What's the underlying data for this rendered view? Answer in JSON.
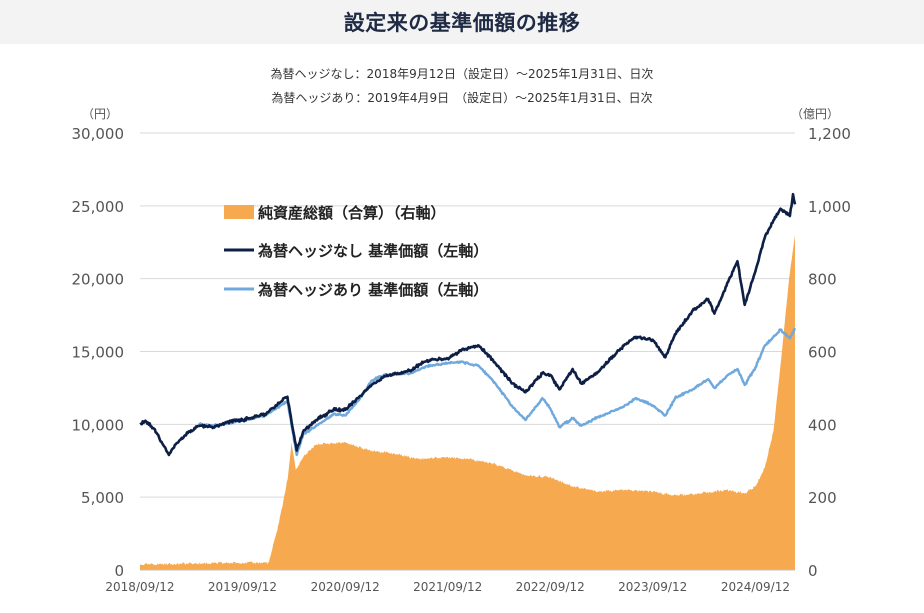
{
  "title": "設定来の基準価額の推移",
  "subtitle_lines": [
    "為替ヘッジなし：2018年9月12日（設定日）～2025年1月31日、日次",
    "為替ヘッジあり：2019年4月9日　（設定日）～2025年1月31日、日次"
  ],
  "colors": {
    "unhedged": "#0d1f45",
    "hedged": "#6fa8dc",
    "net_assets": "#f7a94f",
    "grid": "#d9d9d9"
  },
  "chart_data": {
    "type": "line",
    "x_ticks": [
      "2018/09/12",
      "2019/09/12",
      "2020/09/12",
      "2021/09/12",
      "2022/09/12",
      "2023/09/12",
      "2024/09/12"
    ],
    "y_left": {
      "unit": "（円）",
      "min": 0,
      "max": 30000,
      "ticks": [
        "0",
        "5,000",
        "10,000",
        "15,000",
        "20,000",
        "25,000",
        "30,000"
      ]
    },
    "y_right": {
      "unit": "（億円）",
      "min": 0,
      "max": 1200,
      "ticks": [
        "0",
        "200",
        "400",
        "600",
        "800",
        "1,000",
        "1,200"
      ]
    },
    "legend": [
      "純資産総額（合算）（右軸）",
      "為替ヘッジなし 基準価額（左軸）",
      "為替ヘッジあり 基準価額（左軸）"
    ],
    "legend_position": "upper-left",
    "grid": true,
    "series": [
      {
        "name": "純資産総額（合算）（右軸）",
        "kind": "area",
        "axis": "right",
        "points": [
          [
            "2018-09-12",
            15
          ],
          [
            "2019-04-01",
            18
          ],
          [
            "2019-09-12",
            20
          ],
          [
            "2019-12-15",
            20
          ],
          [
            "2020-01-20",
            130
          ],
          [
            "2020-02-20",
            250
          ],
          [
            "2020-03-05",
            350
          ],
          [
            "2020-03-20",
            275
          ],
          [
            "2020-04-15",
            310
          ],
          [
            "2020-06-01",
            345
          ],
          [
            "2020-09-12",
            350
          ],
          [
            "2020-12-01",
            330
          ],
          [
            "2021-03-01",
            320
          ],
          [
            "2021-06-01",
            305
          ],
          [
            "2021-09-12",
            310
          ],
          [
            "2021-12-01",
            305
          ],
          [
            "2022-03-01",
            290
          ],
          [
            "2022-06-15",
            260
          ],
          [
            "2022-09-12",
            255
          ],
          [
            "2022-12-01",
            230
          ],
          [
            "2023-03-01",
            215
          ],
          [
            "2023-06-01",
            220
          ],
          [
            "2023-09-12",
            215
          ],
          [
            "2023-12-01",
            205
          ],
          [
            "2024-03-01",
            210
          ],
          [
            "2024-06-01",
            220
          ],
          [
            "2024-08-05",
            210
          ],
          [
            "2024-09-12",
            230
          ],
          [
            "2024-10-15",
            280
          ],
          [
            "2024-11-15",
            380
          ],
          [
            "2024-12-10",
            560
          ],
          [
            "2025-01-10",
            800
          ],
          [
            "2025-01-31",
            920
          ]
        ]
      },
      {
        "name": "為替ヘッジなし 基準価額（左軸）",
        "kind": "line",
        "axis": "left",
        "points": [
          [
            "2018-09-12",
            10000
          ],
          [
            "2018-10-01",
            10250
          ],
          [
            "2018-11-01",
            9700
          ],
          [
            "2018-12-24",
            7900
          ],
          [
            "2019-01-20",
            8700
          ],
          [
            "2019-03-01",
            9400
          ],
          [
            "2019-04-09",
            9900
          ],
          [
            "2019-06-01",
            9800
          ],
          [
            "2019-08-01",
            10200
          ],
          [
            "2019-09-12",
            10300
          ],
          [
            "2019-12-01",
            10700
          ],
          [
            "2020-02-19",
            11900
          ],
          [
            "2020-03-23",
            8200
          ],
          [
            "2020-04-15",
            9500
          ],
          [
            "2020-06-01",
            10300
          ],
          [
            "2020-08-01",
            11000
          ],
          [
            "2020-09-12",
            11000
          ],
          [
            "2020-11-01",
            11900
          ],
          [
            "2020-12-15",
            12700
          ],
          [
            "2021-02-01",
            13300
          ],
          [
            "2021-05-01",
            13700
          ],
          [
            "2021-07-01",
            14400
          ],
          [
            "2021-09-12",
            14500
          ],
          [
            "2021-11-01",
            15100
          ],
          [
            "2022-01-01",
            15400
          ],
          [
            "2022-03-01",
            14200
          ],
          [
            "2022-05-01",
            12800
          ],
          [
            "2022-06-16",
            12200
          ],
          [
            "2022-08-15",
            13500
          ],
          [
            "2022-09-12",
            13400
          ],
          [
            "2022-10-15",
            12400
          ],
          [
            "2022-12-01",
            13800
          ],
          [
            "2023-01-01",
            12800
          ],
          [
            "2023-03-01",
            13600
          ],
          [
            "2023-06-01",
            15400
          ],
          [
            "2023-07-15",
            16000
          ],
          [
            "2023-09-12",
            15800
          ],
          [
            "2023-10-27",
            14600
          ],
          [
            "2023-12-01",
            16200
          ],
          [
            "2024-02-01",
            17800
          ],
          [
            "2024-03-28",
            18600
          ],
          [
            "2024-04-19",
            17600
          ],
          [
            "2024-06-01",
            19500
          ],
          [
            "2024-07-10",
            21200
          ],
          [
            "2024-08-05",
            18200
          ],
          [
            "2024-09-12",
            20500
          ],
          [
            "2024-10-15",
            22800
          ],
          [
            "2024-11-15",
            24000
          ],
          [
            "2024-12-10",
            24800
          ],
          [
            "2025-01-13",
            24300
          ],
          [
            "2025-01-24",
            25800
          ],
          [
            "2025-01-31",
            25100
          ]
        ]
      },
      {
        "name": "為替ヘッジあり 基準価額（左軸）",
        "kind": "line",
        "axis": "left",
        "points": [
          [
            "2019-04-09",
            10000
          ],
          [
            "2019-06-01",
            9900
          ],
          [
            "2019-08-01",
            10100
          ],
          [
            "2019-09-12",
            10250
          ],
          [
            "2019-12-01",
            10600
          ],
          [
            "2020-02-19",
            11600
          ],
          [
            "2020-03-23",
            7900
          ],
          [
            "2020-04-15",
            9300
          ],
          [
            "2020-06-01",
            9900
          ],
          [
            "2020-08-01",
            10700
          ],
          [
            "2020-09-12",
            10600
          ],
          [
            "2020-11-01",
            11700
          ],
          [
            "2020-12-15",
            13000
          ],
          [
            "2021-02-01",
            13400
          ],
          [
            "2021-05-01",
            13500
          ],
          [
            "2021-07-01",
            14000
          ],
          [
            "2021-09-12",
            14200
          ],
          [
            "2021-11-01",
            14300
          ],
          [
            "2022-01-01",
            14000
          ],
          [
            "2022-03-01",
            12800
          ],
          [
            "2022-05-01",
            11200
          ],
          [
            "2022-06-16",
            10300
          ],
          [
            "2022-08-15",
            11800
          ],
          [
            "2022-09-12",
            11100
          ],
          [
            "2022-10-15",
            9800
          ],
          [
            "2022-12-01",
            10400
          ],
          [
            "2023-01-01",
            9900
          ],
          [
            "2023-03-01",
            10500
          ],
          [
            "2023-06-01",
            11200
          ],
          [
            "2023-07-15",
            11800
          ],
          [
            "2023-09-12",
            11300
          ],
          [
            "2023-10-27",
            10600
          ],
          [
            "2023-12-01",
            11800
          ],
          [
            "2024-02-01",
            12400
          ],
          [
            "2024-03-28",
            13100
          ],
          [
            "2024-04-19",
            12500
          ],
          [
            "2024-06-01",
            13300
          ],
          [
            "2024-07-10",
            13800
          ],
          [
            "2024-08-05",
            12700
          ],
          [
            "2024-09-12",
            13900
          ],
          [
            "2024-10-15",
            15400
          ],
          [
            "2024-11-15",
            16000
          ],
          [
            "2024-12-10",
            16500
          ],
          [
            "2025-01-13",
            15900
          ],
          [
            "2025-01-31",
            16600
          ]
        ]
      }
    ]
  }
}
